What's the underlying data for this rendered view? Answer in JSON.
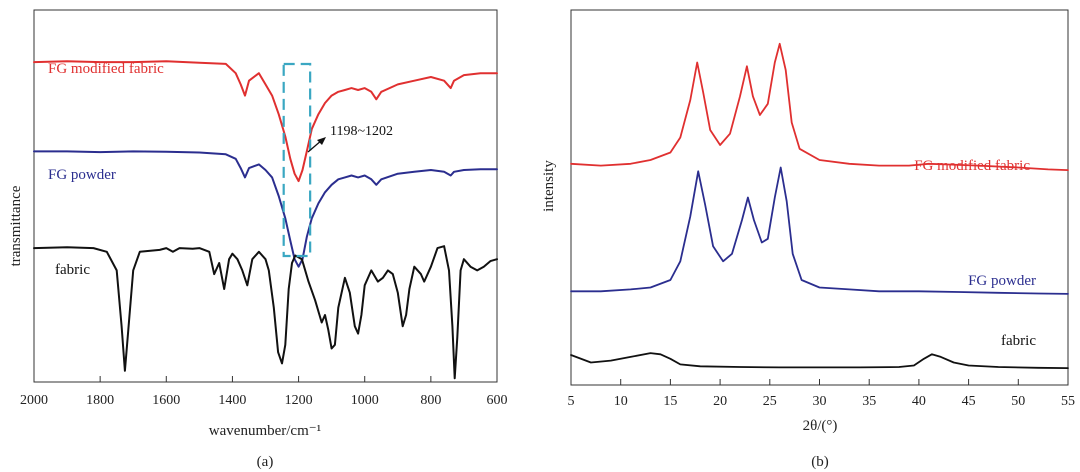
{
  "chart_data": [
    {
      "type": "line",
      "panel_label": "(a)",
      "xlabel": "wavenumber/cm⁻¹",
      "ylabel": "transmittance",
      "xlim": [
        2000,
        600
      ],
      "x_reversed": true,
      "yticks": "none",
      "xticks": [
        2000,
        1800,
        1600,
        1400,
        1200,
        1000,
        800,
        600
      ],
      "grid": false,
      "legend": "none",
      "series": [
        {
          "name": "FG modified fabric",
          "color": "#e03030",
          "points": [
            [
              2000,
              0.86
            ],
            [
              1900,
              0.862
            ],
            [
              1800,
              0.86
            ],
            [
              1700,
              0.86
            ],
            [
              1600,
              0.862
            ],
            [
              1500,
              0.858
            ],
            [
              1420,
              0.855
            ],
            [
              1390,
              0.83
            ],
            [
              1375,
              0.8
            ],
            [
              1362,
              0.77
            ],
            [
              1350,
              0.81
            ],
            [
              1320,
              0.83
            ],
            [
              1300,
              0.8
            ],
            [
              1280,
              0.77
            ],
            [
              1260,
              0.72
            ],
            [
              1240,
              0.66
            ],
            [
              1225,
              0.6
            ],
            [
              1212,
              0.56
            ],
            [
              1200,
              0.54
            ],
            [
              1188,
              0.57
            ],
            [
              1175,
              0.62
            ],
            [
              1160,
              0.68
            ],
            [
              1140,
              0.72
            ],
            [
              1120,
              0.75
            ],
            [
              1100,
              0.77
            ],
            [
              1080,
              0.78
            ],
            [
              1060,
              0.785
            ],
            [
              1040,
              0.79
            ],
            [
              1020,
              0.785
            ],
            [
              1000,
              0.79
            ],
            [
              980,
              0.78
            ],
            [
              965,
              0.76
            ],
            [
              950,
              0.78
            ],
            [
              900,
              0.8
            ],
            [
              850,
              0.81
            ],
            [
              800,
              0.82
            ],
            [
              760,
              0.81
            ],
            [
              740,
              0.79
            ],
            [
              730,
              0.81
            ],
            [
              700,
              0.825
            ],
            [
              650,
              0.83
            ],
            [
              600,
              0.83
            ]
          ]
        },
        {
          "name": "FG powder",
          "color": "#2b2e8f",
          "points": [
            [
              2000,
              0.62
            ],
            [
              1900,
              0.62
            ],
            [
              1800,
              0.618
            ],
            [
              1700,
              0.62
            ],
            [
              1600,
              0.619
            ],
            [
              1500,
              0.617
            ],
            [
              1420,
              0.612
            ],
            [
              1390,
              0.6
            ],
            [
              1375,
              0.575
            ],
            [
              1362,
              0.55
            ],
            [
              1350,
              0.575
            ],
            [
              1320,
              0.585
            ],
            [
              1300,
              0.57
            ],
            [
              1280,
              0.55
            ],
            [
              1260,
              0.5
            ],
            [
              1240,
              0.44
            ],
            [
              1225,
              0.38
            ],
            [
              1212,
              0.33
            ],
            [
              1200,
              0.31
            ],
            [
              1188,
              0.33
            ],
            [
              1175,
              0.39
            ],
            [
              1160,
              0.44
            ],
            [
              1140,
              0.48
            ],
            [
              1120,
              0.51
            ],
            [
              1100,
              0.53
            ],
            [
              1080,
              0.545
            ],
            [
              1060,
              0.55
            ],
            [
              1040,
              0.555
            ],
            [
              1020,
              0.55
            ],
            [
              1000,
              0.555
            ],
            [
              980,
              0.545
            ],
            [
              965,
              0.53
            ],
            [
              950,
              0.545
            ],
            [
              900,
              0.56
            ],
            [
              850,
              0.565
            ],
            [
              800,
              0.57
            ],
            [
              760,
              0.565
            ],
            [
              740,
              0.555
            ],
            [
              730,
              0.565
            ],
            [
              700,
              0.57
            ],
            [
              650,
              0.572
            ],
            [
              600,
              0.572
            ]
          ]
        },
        {
          "name": "fabric",
          "color": "#111111",
          "points": [
            [
              2000,
              0.36
            ],
            [
              1900,
              0.362
            ],
            [
              1820,
              0.36
            ],
            [
              1780,
              0.35
            ],
            [
              1750,
              0.3
            ],
            [
              1735,
              0.15
            ],
            [
              1725,
              0.03
            ],
            [
              1715,
              0.14
            ],
            [
              1700,
              0.3
            ],
            [
              1680,
              0.35
            ],
            [
              1620,
              0.355
            ],
            [
              1600,
              0.36
            ],
            [
              1580,
              0.35
            ],
            [
              1560,
              0.36
            ],
            [
              1520,
              0.358
            ],
            [
              1500,
              0.36
            ],
            [
              1470,
              0.35
            ],
            [
              1455,
              0.29
            ],
            [
              1440,
              0.32
            ],
            [
              1425,
              0.25
            ],
            [
              1410,
              0.33
            ],
            [
              1400,
              0.345
            ],
            [
              1385,
              0.33
            ],
            [
              1370,
              0.3
            ],
            [
              1355,
              0.26
            ],
            [
              1340,
              0.33
            ],
            [
              1320,
              0.35
            ],
            [
              1300,
              0.33
            ],
            [
              1290,
              0.3
            ],
            [
              1275,
              0.2
            ],
            [
              1262,
              0.08
            ],
            [
              1250,
              0.05
            ],
            [
              1240,
              0.1
            ],
            [
              1230,
              0.25
            ],
            [
              1220,
              0.32
            ],
            [
              1210,
              0.34
            ],
            [
              1190,
              0.33
            ],
            [
              1170,
              0.27
            ],
            [
              1150,
              0.22
            ],
            [
              1130,
              0.16
            ],
            [
              1120,
              0.18
            ],
            [
              1110,
              0.14
            ],
            [
              1100,
              0.09
            ],
            [
              1090,
              0.1
            ],
            [
              1080,
              0.2
            ],
            [
              1060,
              0.28
            ],
            [
              1045,
              0.24
            ],
            [
              1030,
              0.15
            ],
            [
              1020,
              0.13
            ],
            [
              1010,
              0.18
            ],
            [
              1000,
              0.26
            ],
            [
              980,
              0.3
            ],
            [
              960,
              0.27
            ],
            [
              945,
              0.28
            ],
            [
              930,
              0.3
            ],
            [
              915,
              0.29
            ],
            [
              900,
              0.24
            ],
            [
              885,
              0.15
            ],
            [
              875,
              0.18
            ],
            [
              865,
              0.25
            ],
            [
              850,
              0.31
            ],
            [
              830,
              0.29
            ],
            [
              820,
              0.27
            ],
            [
              800,
              0.31
            ],
            [
              780,
              0.36
            ],
            [
              760,
              0.365
            ],
            [
              745,
              0.3
            ],
            [
              735,
              0.15
            ],
            [
              728,
              0.01
            ],
            [
              720,
              0.12
            ],
            [
              710,
              0.3
            ],
            [
              700,
              0.33
            ],
            [
              680,
              0.31
            ],
            [
              660,
              0.3
            ],
            [
              640,
              0.31
            ],
            [
              620,
              0.325
            ],
            [
              600,
              0.33
            ]
          ]
        }
      ],
      "series_labels": [
        {
          "text": "FG modified fabric",
          "color": "#e03030"
        },
        {
          "text": "FG powder",
          "color": "#2b2e8f"
        },
        {
          "text": "fabric",
          "color": "#111111"
        }
      ],
      "annotations": [
        {
          "text": "1198~1202"
        }
      ],
      "highlight_box": {
        "x_range": [
          1245,
          1165
        ],
        "color": "#3aa7c2",
        "style": "dashed"
      }
    },
    {
      "type": "line",
      "panel_label": "(b)",
      "xlabel": "2θ/(°)",
      "ylabel": "intensity",
      "xlim": [
        5,
        55
      ],
      "xticks": [
        5,
        10,
        15,
        20,
        25,
        30,
        35,
        40,
        45,
        50,
        55
      ],
      "yticks": "none",
      "grid": false,
      "legend": "none",
      "series": [
        {
          "name": "FG modified fabric",
          "color": "#e03030",
          "points": [
            [
              5,
              0.59
            ],
            [
              8,
              0.585
            ],
            [
              11,
              0.59
            ],
            [
              13,
              0.6
            ],
            [
              15,
              0.62
            ],
            [
              16,
              0.66
            ],
            [
              17,
              0.76
            ],
            [
              17.7,
              0.86
            ],
            [
              18.3,
              0.78
            ],
            [
              19,
              0.68
            ],
            [
              20,
              0.64
            ],
            [
              21,
              0.67
            ],
            [
              22,
              0.77
            ],
            [
              22.7,
              0.85
            ],
            [
              23.3,
              0.77
            ],
            [
              24,
              0.72
            ],
            [
              24.8,
              0.75
            ],
            [
              25.5,
              0.86
            ],
            [
              26,
              0.91
            ],
            [
              26.6,
              0.84
            ],
            [
              27.2,
              0.7
            ],
            [
              28,
              0.63
            ],
            [
              30,
              0.6
            ],
            [
              33,
              0.59
            ],
            [
              36,
              0.585
            ],
            [
              39,
              0.585
            ],
            [
              41,
              0.59
            ],
            [
              43,
              0.588
            ],
            [
              46,
              0.585
            ],
            [
              50,
              0.58
            ],
            [
              53,
              0.575
            ],
            [
              55,
              0.573
            ]
          ]
        },
        {
          "name": "FG powder",
          "color": "#2b2e8f",
          "points": [
            [
              5,
              0.25
            ],
            [
              8,
              0.25
            ],
            [
              11,
              0.255
            ],
            [
              13,
              0.26
            ],
            [
              15,
              0.28
            ],
            [
              16,
              0.33
            ],
            [
              17,
              0.45
            ],
            [
              17.8,
              0.57
            ],
            [
              18.5,
              0.48
            ],
            [
              19.3,
              0.37
            ],
            [
              20.3,
              0.33
            ],
            [
              21.2,
              0.35
            ],
            [
              22.2,
              0.44
            ],
            [
              22.8,
              0.5
            ],
            [
              23.4,
              0.44
            ],
            [
              24.2,
              0.38
            ],
            [
              24.8,
              0.39
            ],
            [
              25.5,
              0.5
            ],
            [
              26.1,
              0.58
            ],
            [
              26.7,
              0.49
            ],
            [
              27.3,
              0.35
            ],
            [
              28.2,
              0.28
            ],
            [
              30,
              0.26
            ],
            [
              33,
              0.255
            ],
            [
              36,
              0.25
            ],
            [
              40,
              0.25
            ],
            [
              44,
              0.248
            ],
            [
              48,
              0.246
            ],
            [
              52,
              0.244
            ],
            [
              55,
              0.243
            ]
          ]
        },
        {
          "name": "fabric",
          "color": "#111111",
          "points": [
            [
              5,
              0.08
            ],
            [
              7,
              0.06
            ],
            [
              9,
              0.065
            ],
            [
              11,
              0.075
            ],
            [
              13,
              0.085
            ],
            [
              14,
              0.082
            ],
            [
              15,
              0.07
            ],
            [
              16,
              0.055
            ],
            [
              18,
              0.05
            ],
            [
              22,
              0.048
            ],
            [
              26,
              0.047
            ],
            [
              30,
              0.047
            ],
            [
              34,
              0.047
            ],
            [
              38,
              0.048
            ],
            [
              39.5,
              0.052
            ],
            [
              40.5,
              0.07
            ],
            [
              41.3,
              0.082
            ],
            [
              42.2,
              0.075
            ],
            [
              43.5,
              0.06
            ],
            [
              45,
              0.052
            ],
            [
              48,
              0.048
            ],
            [
              52,
              0.046
            ],
            [
              55,
              0.045
            ]
          ]
        }
      ],
      "series_labels": [
        {
          "text": "FG modified fabric",
          "color": "#e03030"
        },
        {
          "text": "FG powder",
          "color": "#2b2e8f"
        },
        {
          "text": "fabric",
          "color": "#111111"
        }
      ]
    }
  ]
}
